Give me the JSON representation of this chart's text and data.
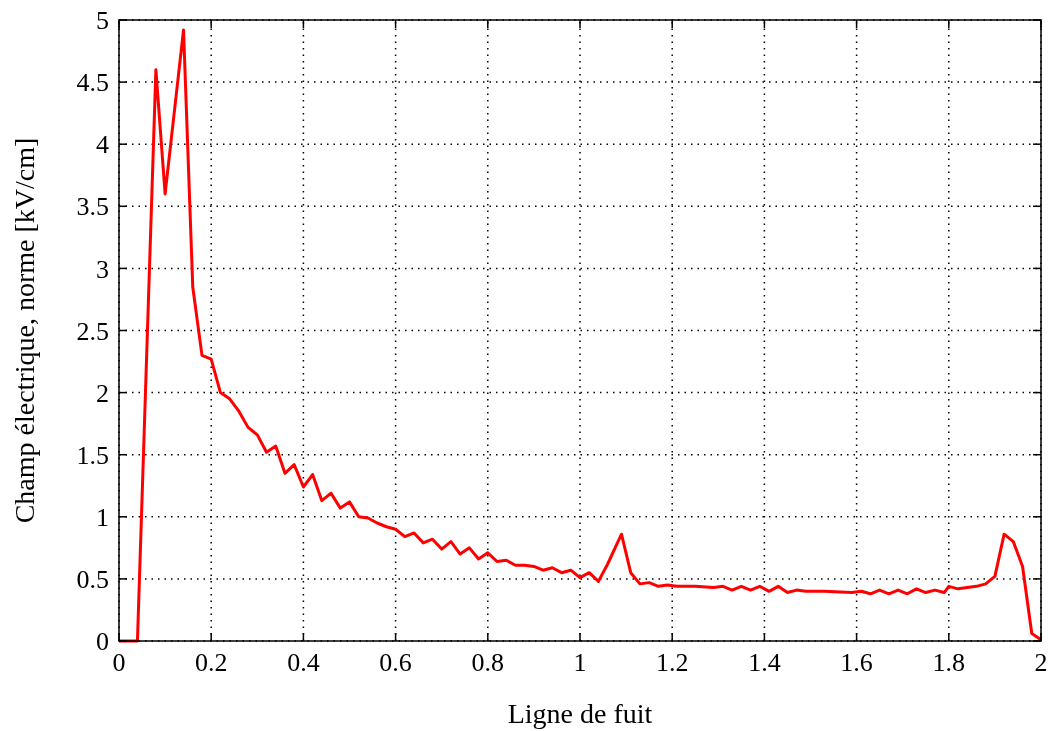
{
  "chart_data": {
    "type": "line",
    "xlabel": "Ligne de fuit",
    "ylabel": "Champ électrique, norme [kV/cm]",
    "xlim": [
      0,
      2
    ],
    "ylim": [
      0,
      5
    ],
    "xticks": [
      0,
      0.2,
      0.4,
      0.6,
      0.8,
      1,
      1.2,
      1.4,
      1.6,
      1.8,
      2
    ],
    "yticks": [
      0,
      0.5,
      1,
      1.5,
      2,
      2.5,
      3,
      3.5,
      4,
      4.5,
      5
    ],
    "grid": true,
    "marker": "none",
    "line_style": "solid",
    "x": [
      0,
      0.04,
      0.08,
      0.1,
      0.14,
      0.16,
      0.18,
      0.2,
      0.22,
      0.24,
      0.26,
      0.28,
      0.3,
      0.32,
      0.34,
      0.36,
      0.38,
      0.4,
      0.42,
      0.44,
      0.46,
      0.48,
      0.5,
      0.52,
      0.54,
      0.56,
      0.58,
      0.6,
      0.62,
      0.64,
      0.66,
      0.68,
      0.7,
      0.72,
      0.74,
      0.76,
      0.78,
      0.8,
      0.82,
      0.84,
      0.86,
      0.88,
      0.9,
      0.92,
      0.94,
      0.96,
      0.98,
      1,
      1.02,
      1.04,
      1.06,
      1.09,
      1.11,
      1.13,
      1.15,
      1.17,
      1.19,
      1.21,
      1.25,
      1.29,
      1.31,
      1.33,
      1.35,
      1.37,
      1.39,
      1.41,
      1.43,
      1.45,
      1.47,
      1.49,
      1.53,
      1.59,
      1.61,
      1.63,
      1.65,
      1.67,
      1.69,
      1.71,
      1.73,
      1.75,
      1.77,
      1.79,
      1.8,
      1.82,
      1.86,
      1.88,
      1.9,
      1.92,
      1.94,
      1.96,
      1.98,
      2
    ],
    "series": [
      {
        "color": "#ff0000",
        "values": [
          0,
          0,
          4.6,
          3.6,
          4.92,
          2.85,
          2.3,
          2.27,
          2.0,
          1.95,
          1.85,
          1.72,
          1.66,
          1.52,
          1.57,
          1.35,
          1.42,
          1.24,
          1.34,
          1.13,
          1.19,
          1.07,
          1.12,
          1.0,
          0.99,
          0.95,
          0.92,
          0.9,
          0.84,
          0.87,
          0.79,
          0.82,
          0.74,
          0.8,
          0.7,
          0.75,
          0.66,
          0.71,
          0.64,
          0.65,
          0.61,
          0.61,
          0.6,
          0.57,
          0.59,
          0.55,
          0.57,
          0.51,
          0.55,
          0.48,
          0.62,
          0.86,
          0.55,
          0.46,
          0.47,
          0.44,
          0.45,
          0.44,
          0.44,
          0.43,
          0.44,
          0.41,
          0.44,
          0.41,
          0.44,
          0.4,
          0.44,
          0.39,
          0.41,
          0.4,
          0.4,
          0.39,
          0.4,
          0.38,
          0.41,
          0.38,
          0.41,
          0.38,
          0.42,
          0.39,
          0.41,
          0.39,
          0.44,
          0.42,
          0.44,
          0.46,
          0.52,
          0.86,
          0.8,
          0.6,
          0.06,
          0.01
        ]
      }
    ]
  }
}
